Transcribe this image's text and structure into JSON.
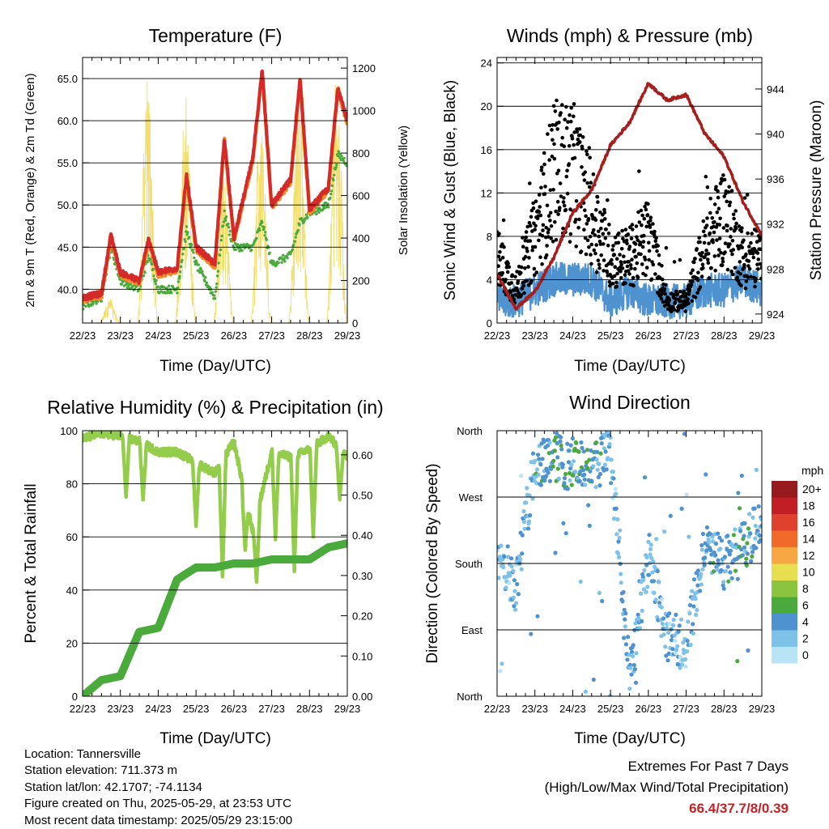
{
  "charts": {
    "x_ticks": [
      "22/23",
      "23/23",
      "24/23",
      "25/23",
      "26/23",
      "27/23",
      "28/23",
      "29/23"
    ],
    "temperature": {
      "title": "Temperature (F)",
      "xlabel": "Time (Day/UTC)",
      "ylabel": "2m & 9m T (Red, Orange) & 2m Td (Green)",
      "ylabel_right": "Solar Insolation (Yellow)",
      "ylim": [
        36.0,
        67.5
      ],
      "y_ticks": [
        "40.0",
        "45.0",
        "50.0",
        "55.0",
        "60.0",
        "65.0"
      ],
      "ylim_right": [
        0,
        1250
      ],
      "y_ticks_right": [
        "0",
        "200",
        "400",
        "600",
        "800",
        "1000",
        "1200"
      ]
    },
    "winds": {
      "title": "Winds (mph) & Pressure (mb)",
      "xlabel": "Time (Day/UTC)",
      "ylabel": "Sonic Wind & Gust (Blue, Black)",
      "ylabel_right": "Station Pressure (Maroon)",
      "ylim": [
        0,
        24.5
      ],
      "y_ticks": [
        "0",
        "4",
        "8",
        "12",
        "16",
        "20",
        "24"
      ],
      "ylim_right": [
        923.2,
        946.8
      ],
      "y_ticks_right": [
        "924",
        "928",
        "932",
        "936",
        "940",
        "944"
      ]
    },
    "humidity": {
      "title": "Relative Humidity (%) & Precipitation (in)",
      "xlabel": "Time (Day/UTC)",
      "ylabel": "Percent & Total Rainfall",
      "ylim": [
        0,
        100
      ],
      "y_ticks": [
        "0",
        "20",
        "40",
        "60",
        "80",
        "100"
      ],
      "ylim_right": [
        0,
        0.66
      ],
      "y_ticks_right": [
        "0.00",
        "0.10",
        "0.20",
        "0.30",
        "0.40",
        "0.50",
        "0.60"
      ]
    },
    "direction": {
      "title": "Wind Direction",
      "xlabel": "Time (Day/UTC)",
      "ylabel": "Direction (Colored By Speed)",
      "y_ticks": [
        "North",
        "East",
        "South",
        "West",
        "North"
      ],
      "legend_title": "mph",
      "legend_labels": [
        "20+",
        "18",
        "16",
        "14",
        "12",
        "10",
        "8",
        "6",
        "4",
        "2",
        "0"
      ]
    }
  },
  "chart_data": [
    {
      "type": "line",
      "title": "Temperature (F)",
      "xlabel": "Time (Day/UTC)",
      "x": [
        0,
        0.5,
        0.75,
        1,
        1.5,
        1.75,
        2,
        2.5,
        2.75,
        3,
        3.5,
        3.75,
        4,
        4.5,
        4.75,
        5,
        5.5,
        5.75,
        6,
        6.5,
        6.75,
        7
      ],
      "series": [
        {
          "name": "2m T",
          "values": [
            39.0,
            39.5,
            46.5,
            42.0,
            41.0,
            46.0,
            42.0,
            42.5,
            53.5,
            45.0,
            43.0,
            58.0,
            46.0,
            55.5,
            66.0,
            50.0,
            53.0,
            65.0,
            49.5,
            52.0,
            64.0,
            60.0
          ]
        },
        {
          "name": "2m Td",
          "values": [
            38.0,
            39.0,
            45.0,
            41.0,
            40.0,
            44.0,
            40.0,
            40.0,
            47.0,
            43.0,
            39.0,
            49.0,
            45.0,
            45.0,
            48.0,
            43.0,
            44.0,
            48.0,
            49.0,
            50.0,
            56.0,
            55.0
          ]
        },
        {
          "name": "Solar Insolation",
          "axis": "right",
          "values_peak": [
            120,
            1190,
            1110,
            720,
            1090,
            1140,
            1210,
            1200
          ]
        }
      ],
      "ylim": [
        36.0,
        67.5
      ],
      "ylim_right": [
        0,
        1250
      ]
    },
    {
      "type": "scatter",
      "title": "Winds (mph) & Pressure (mb)",
      "xlabel": "Time (Day/UTC)",
      "x": [
        0,
        0.5,
        1,
        1.5,
        2,
        2.5,
        3,
        3.5,
        4,
        4.5,
        5,
        5.5,
        6,
        6.5,
        7
      ],
      "series": [
        {
          "name": "Wind",
          "values": [
            2,
            2,
            3,
            4,
            4,
            4,
            2,
            3,
            2,
            2,
            2,
            3,
            3,
            4,
            3
          ]
        },
        {
          "name": "Gust",
          "values": [
            6,
            3,
            8,
            14,
            14,
            10,
            6,
            6,
            8,
            2,
            2,
            7,
            10,
            6,
            6
          ]
        },
        {
          "name": "Station Pressure",
          "axis": "right",
          "values": [
            927.5,
            924.5,
            926.0,
            929.0,
            933.0,
            935.0,
            939.0,
            941.0,
            944.5,
            943.0,
            943.5,
            940.0,
            938.0,
            934.0,
            931.0
          ]
        }
      ],
      "ylim": [
        0,
        24.5
      ],
      "ylim_right": [
        923.2,
        946.8
      ]
    },
    {
      "type": "line",
      "title": "Relative Humidity (%) & Precipitation (in)",
      "xlabel": "Time (Day/UTC)",
      "x": [
        0,
        0.5,
        1,
        1.5,
        2,
        2.5,
        3,
        3.5,
        4,
        4.5,
        5,
        5.5,
        6,
        6.5,
        7
      ],
      "series": [
        {
          "name": "Relative Humidity",
          "values": [
            97,
            99,
            98,
            96,
            92,
            92,
            88,
            84,
            96,
            62,
            92,
            90,
            93,
            98,
            90
          ]
        },
        {
          "name": "Total Precipitation",
          "axis": "right",
          "values": [
            0.0,
            0.04,
            0.05,
            0.16,
            0.17,
            0.29,
            0.32,
            0.32,
            0.33,
            0.33,
            0.34,
            0.34,
            0.34,
            0.37,
            0.38
          ]
        }
      ],
      "ylim": [
        0,
        100
      ],
      "ylim_right": [
        0,
        0.66
      ]
    },
    {
      "type": "scatter",
      "title": "Wind Direction",
      "xlabel": "Time (Day/UTC)",
      "x": [
        0,
        0.5,
        1,
        1.5,
        2,
        2.5,
        3,
        3.5,
        4,
        4.5,
        5,
        5.5,
        6,
        6.5,
        7
      ],
      "series": [
        {
          "name": "Direction",
          "values": [
            200,
            150,
            320,
            325,
            310,
            315,
            330,
            20,
            190,
            80,
            70,
            200,
            180,
            200,
            240
          ]
        }
      ],
      "ylim": [
        0,
        360
      ]
    }
  ],
  "info": {
    "location": "Location: Tannersville",
    "elevation": "Station elevation: 711.373 m",
    "latlon": "Station lat/lon: 42.1707; -74.1134",
    "created": "Figure created on Thu, 2025-05-29, at 23:53 UTC",
    "recent": "Most recent data timestamp: 2025/05/29 23:15:00"
  },
  "extremes": {
    "title": "Extremes For Past 7 Days",
    "subtitle": "(High/Low/Max Wind/Total Precipitation)",
    "value": "66.4/37.7/8/0.39"
  },
  "colors": {
    "temp_red": "#d42a2a",
    "temp_orange": "#f28c28",
    "dewpoint": "#4aaa3c",
    "insolation": "#f2de6e",
    "wind": "#4e93cf",
    "gust": "#000000",
    "pressure": "#a51f1f",
    "rh": "#94cc4c",
    "precip": "#4aaa3c",
    "speed_scale": [
      "#b9e3f6",
      "#7ec2ea",
      "#4e93cf",
      "#4aaa3c",
      "#8bc53f",
      "#e7df4f",
      "#f7a845",
      "#f26a29",
      "#e0402e",
      "#c21f24",
      "#971b1e"
    ]
  }
}
